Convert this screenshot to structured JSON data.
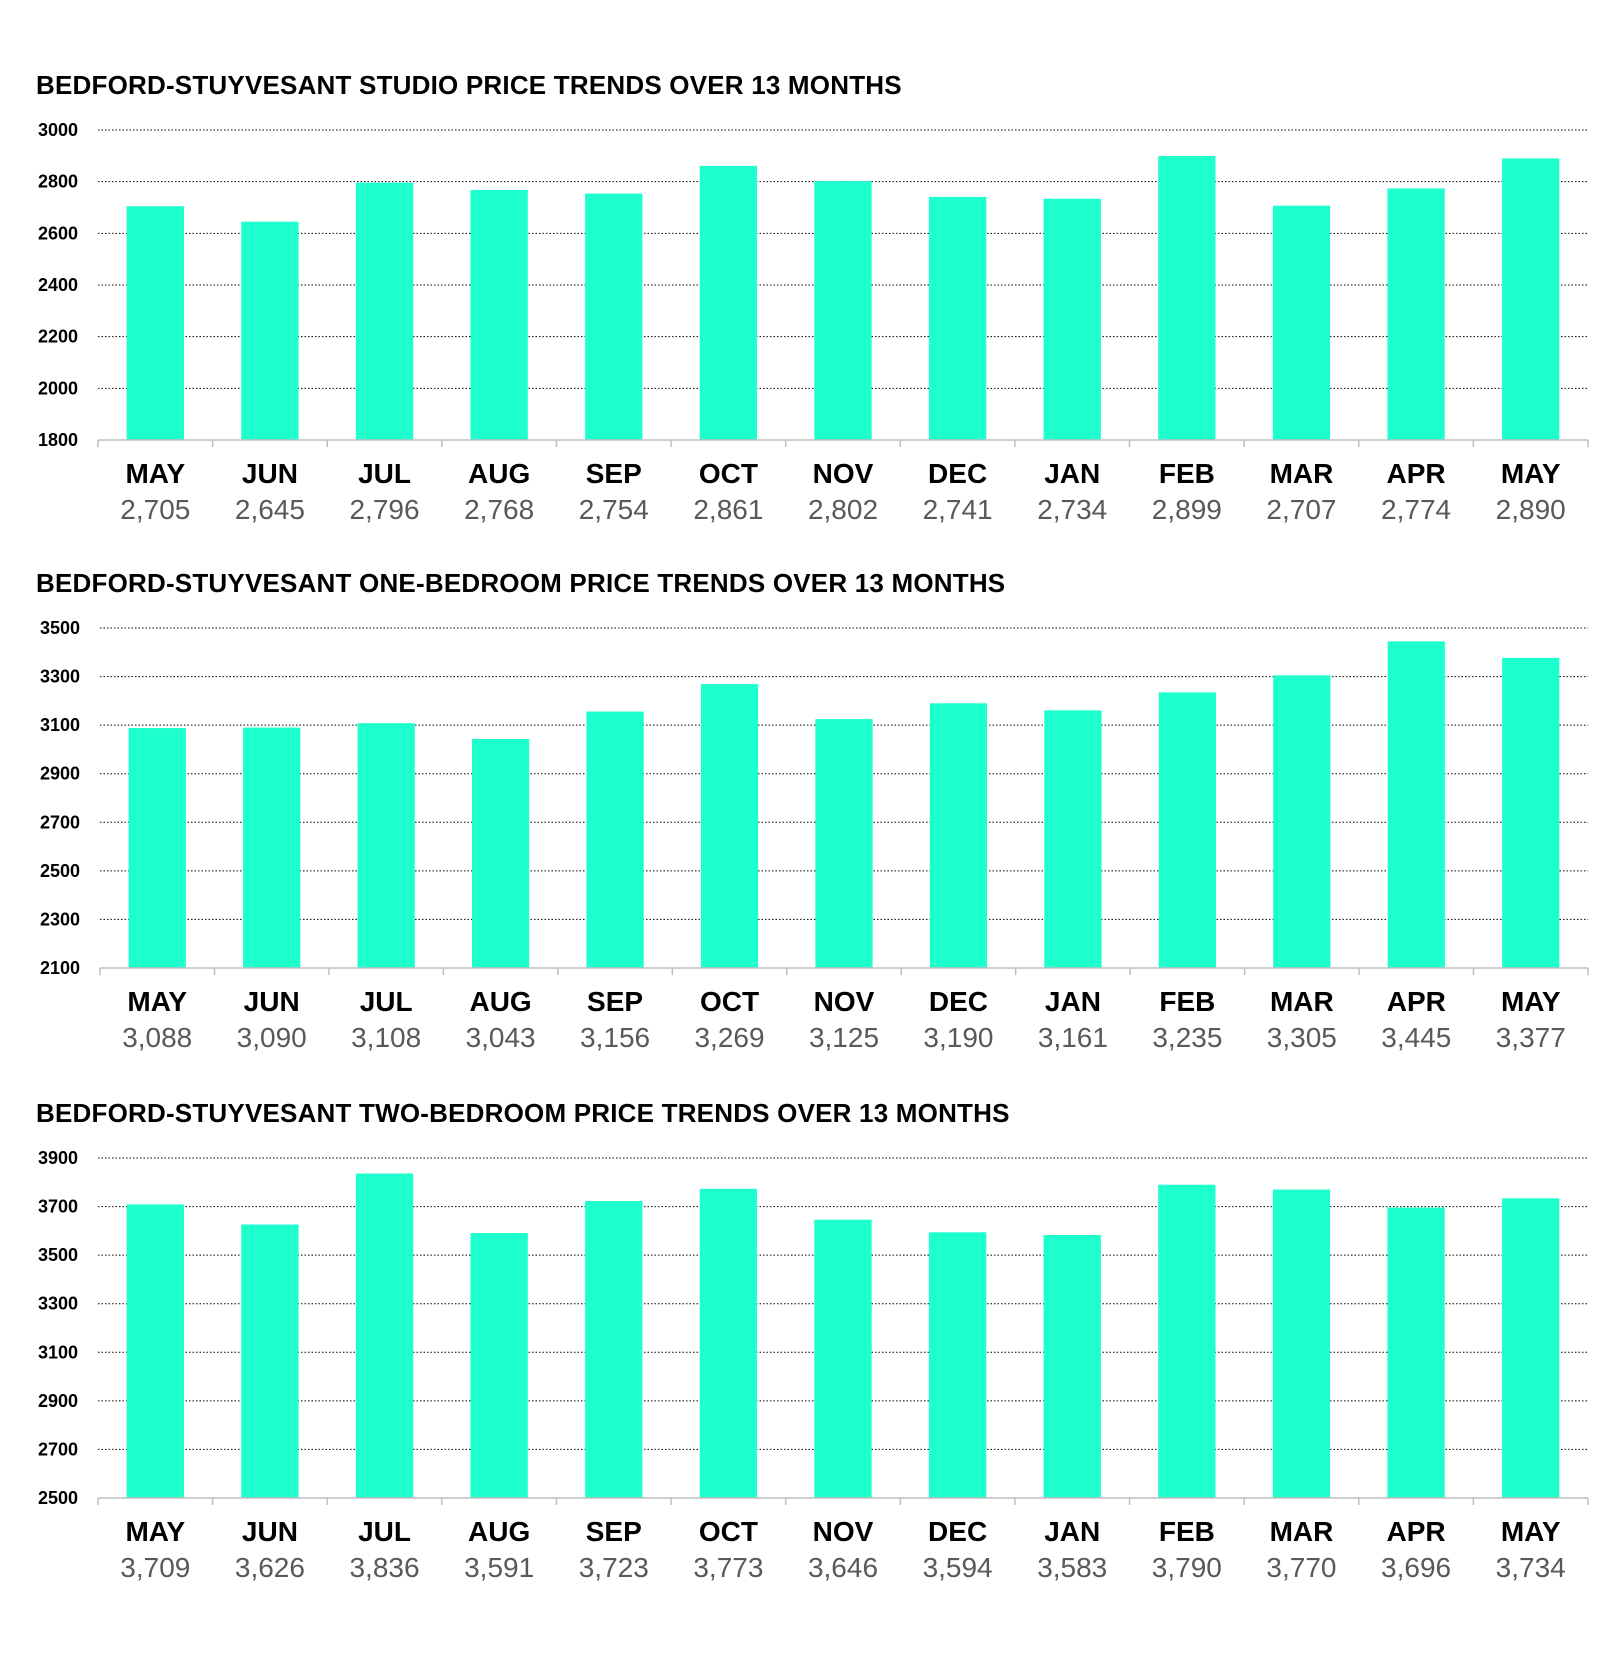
{
  "colors": {
    "bar": "#1dffcc",
    "grid": "#000000",
    "axis": "#bfbfbf",
    "value_text": "#595959"
  },
  "chart_data": [
    {
      "type": "bar",
      "title": "BEDFORD-STUYVESANT STUDIO PRICE TRENDS OVER 13 MONTHS",
      "categories": [
        "MAY",
        "JUN",
        "JUL",
        "AUG",
        "SEP",
        "OCT",
        "NOV",
        "DEC",
        "JAN",
        "FEB",
        "MAR",
        "APR",
        "MAY"
      ],
      "values": [
        2705,
        2645,
        2796,
        2768,
        2754,
        2861,
        2802,
        2741,
        2734,
        2899,
        2707,
        2774,
        2890
      ],
      "value_labels": [
        "2,705",
        "2,645",
        "2,796",
        "2,768",
        "2,754",
        "2,861",
        "2,802",
        "2,741",
        "2,734",
        "2,899",
        "2,707",
        "2,774",
        "2,890"
      ],
      "ylim": [
        1800,
        3000
      ],
      "yticks": [
        1800,
        2000,
        2200,
        2400,
        2600,
        2800,
        3000
      ],
      "grid": true,
      "xlabel": "",
      "ylabel": ""
    },
    {
      "type": "bar",
      "title": "BEDFORD-STUYVESANT ONE-BEDROOM PRICE TRENDS OVER 13 MONTHS",
      "categories": [
        "MAY",
        "JUN",
        "JUL",
        "AUG",
        "SEP",
        "OCT",
        "NOV",
        "DEC",
        "JAN",
        "FEB",
        "MAR",
        "APR",
        "MAY"
      ],
      "values": [
        3088,
        3090,
        3108,
        3043,
        3156,
        3269,
        3125,
        3190,
        3161,
        3235,
        3305,
        3445,
        3377
      ],
      "value_labels": [
        "3,088",
        "3,090",
        "3,108",
        "3,043",
        "3,156",
        "3,269",
        "3,125",
        "3,190",
        "3,161",
        "3,235",
        "3,305",
        "3,445",
        "3,377"
      ],
      "ylim": [
        2100,
        3500
      ],
      "yticks": [
        2100,
        2300,
        2500,
        2700,
        2900,
        3100,
        3300,
        3500
      ],
      "grid": true,
      "xlabel": "",
      "ylabel": ""
    },
    {
      "type": "bar",
      "title": "BEDFORD-STUYVESANT TWO-BEDROOM PRICE TRENDS OVER 13 MONTHS",
      "categories": [
        "MAY",
        "JUN",
        "JUL",
        "AUG",
        "SEP",
        "OCT",
        "NOV",
        "DEC",
        "JAN",
        "FEB",
        "MAR",
        "APR",
        "MAY"
      ],
      "values": [
        3709,
        3626,
        3836,
        3591,
        3723,
        3773,
        3646,
        3594,
        3583,
        3790,
        3770,
        3696,
        3734
      ],
      "value_labels": [
        "3,709",
        "3,626",
        "3,836",
        "3,591",
        "3,723",
        "3,773",
        "3,646",
        "3,594",
        "3,583",
        "3,790",
        "3,770",
        "3,696",
        "3,734"
      ],
      "ylim": [
        2500,
        3900
      ],
      "yticks": [
        2500,
        2700,
        2900,
        3100,
        3300,
        3500,
        3700,
        3900
      ],
      "grid": true,
      "xlabel": "",
      "ylabel": ""
    }
  ]
}
